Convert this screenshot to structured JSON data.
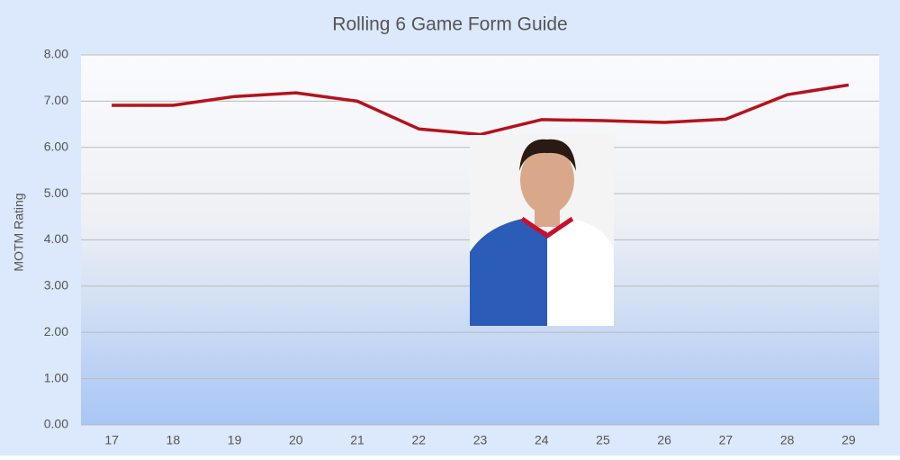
{
  "chart_data": {
    "type": "line",
    "title": "Rolling 6 Game Form Guide",
    "y_label": "MOTM Rating",
    "categories": [
      "17",
      "18",
      "19",
      "20",
      "21",
      "22",
      "23",
      "24",
      "25",
      "26",
      "27",
      "28",
      "29"
    ],
    "series": [
      {
        "name": "MOTM Rating",
        "color": "#b5121b",
        "values": [
          6.91,
          6.91,
          7.1,
          7.18,
          7.0,
          6.4,
          6.28,
          6.6,
          6.58,
          6.54,
          6.61,
          7.14,
          7.35
        ]
      }
    ],
    "ylim": [
      0,
      8
    ],
    "yticks": [
      {
        "value": 0,
        "label": "0.00"
      },
      {
        "value": 1,
        "label": "1.00"
      },
      {
        "value": 2,
        "label": "2.00"
      },
      {
        "value": 3,
        "label": "3.00"
      },
      {
        "value": 4,
        "label": "4.00"
      },
      {
        "value": 5,
        "label": "5.00"
      },
      {
        "value": 6,
        "label": "6.00"
      },
      {
        "value": 7,
        "label": "7.00"
      },
      {
        "value": 8,
        "label": "8.00"
      }
    ],
    "grid": true,
    "legend": false
  }
}
